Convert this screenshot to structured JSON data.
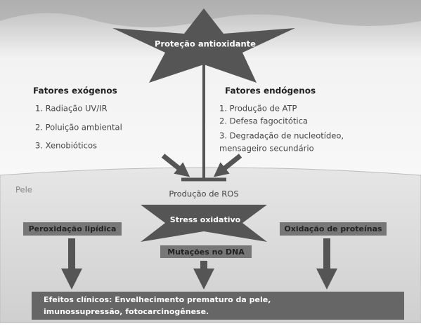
{
  "star": {
    "label": "Proteção antioxidante"
  },
  "exogenous": {
    "title": "Fatores exógenos",
    "items": [
      "1. Radiação UV/IR",
      "2. Poluição ambiental",
      "3. Xenobióticos"
    ]
  },
  "endogenous": {
    "title": "Fatores endógenos",
    "items": [
      "1. Produção de ATP",
      "2. Defesa fagocitótica",
      "3. Degradação de nucleotídeo,",
      "mensageiro secundário"
    ]
  },
  "skin": {
    "label": "Pele",
    "ros": "Produção de ROS",
    "stress": "Stress oxidativo",
    "lipid": "Peroxidação lipídica",
    "protein": "Oxidação de proteínas",
    "dna": "Mutações no DNA",
    "effects": [
      "Efeitos clínicos: Envelhecimento prematuro da pele,",
      "imunossupressão, fotocarcinogênese."
    ]
  }
}
